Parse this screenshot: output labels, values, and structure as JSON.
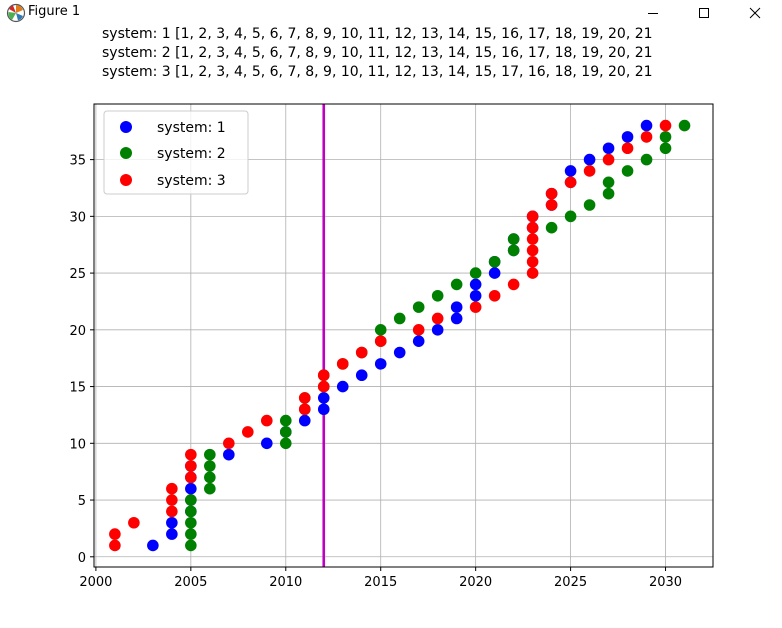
{
  "window": {
    "title": "Figure 1",
    "icon": "matplotlib-icon",
    "controls": [
      "minimize-icon",
      "maximize-icon",
      "close-icon"
    ]
  },
  "chart_data": {
    "type": "scatter",
    "title_lines": [
      "system: 1 [1, 2, 3, 4, 5, 6, 7, 8, 9, 10, 11, 12, 13, 14, 15, 16, 17, 18, 19, 20, 21",
      "system: 2 [1, 2, 3, 4, 5, 6, 7, 8, 9, 10, 11, 12, 13, 14, 15, 16, 17, 18, 19, 20, 21",
      "system: 3 [1, 2, 3, 4, 5, 6, 7, 8, 9, 10, 11, 12, 13, 14, 15, 17, 16, 18, 19, 20, 21"
    ],
    "xlim": [
      1999.9,
      2032.5
    ],
    "ylim": [
      -0.9,
      39.9
    ],
    "xticks": [
      2000,
      2005,
      2010,
      2015,
      2020,
      2025,
      2030
    ],
    "yticks": [
      0,
      5,
      10,
      15,
      20,
      25,
      30,
      35
    ],
    "grid": true,
    "legend_position": "top-left",
    "vline": {
      "x": 2012,
      "color": "#bf00bf"
    },
    "series": [
      {
        "name": "system: 1",
        "color": "#0000ff",
        "x": [
          2003,
          2004,
          2004,
          2005,
          2005,
          2005,
          2005,
          2005,
          2007,
          2009,
          2010,
          2011,
          2012,
          2012,
          2013,
          2014,
          2015,
          2016,
          2017,
          2018,
          2019,
          2019,
          2020,
          2020,
          2021,
          2021,
          2022,
          2022,
          2023,
          2023,
          2024,
          2024,
          2025,
          2025,
          2026,
          2027,
          2028,
          2029
        ],
        "y": [
          1,
          2,
          3,
          4,
          5,
          6,
          7,
          8,
          9,
          10,
          11,
          12,
          13,
          14,
          15,
          16,
          17,
          18,
          19,
          20,
          21,
          22,
          23,
          24,
          25,
          26,
          27,
          28,
          29,
          30,
          31,
          32,
          33,
          34,
          35,
          36,
          37,
          38
        ]
      },
      {
        "name": "system: 2",
        "color": "#008000",
        "x": [
          2005,
          2005,
          2005,
          2005,
          2005,
          2006,
          2006,
          2006,
          2006,
          2010,
          2010,
          2010,
          2011,
          2011,
          2012,
          2012,
          2013,
          2014,
          2015,
          2015,
          2016,
          2017,
          2018,
          2019,
          2020,
          2021,
          2022,
          2022,
          2024,
          2025,
          2026,
          2027,
          2027,
          2028,
          2029,
          2030,
          2030,
          2031
        ],
        "y": [
          1,
          2,
          3,
          4,
          5,
          6,
          7,
          8,
          9,
          10,
          11,
          12,
          13,
          14,
          15,
          16,
          17,
          18,
          19,
          20,
          21,
          22,
          23,
          24,
          25,
          26,
          27,
          28,
          29,
          30,
          31,
          32,
          33,
          34,
          35,
          36,
          37,
          38
        ]
      },
      {
        "name": "system: 3",
        "color": "#ff0000",
        "x": [
          2001,
          2001,
          2002,
          2004,
          2004,
          2004,
          2005,
          2005,
          2005,
          2007,
          2008,
          2009,
          2011,
          2011,
          2012,
          2012,
          2013,
          2014,
          2015,
          2017,
          2018,
          2020,
          2021,
          2022,
          2023,
          2023,
          2023,
          2023,
          2023,
          2023,
          2024,
          2024,
          2025,
          2026,
          2027,
          2028,
          2029,
          2030
        ],
        "y": [
          1,
          2,
          3,
          4,
          5,
          6,
          7,
          8,
          9,
          10,
          11,
          12,
          13,
          14,
          15,
          16,
          17,
          18,
          19,
          20,
          21,
          22,
          23,
          24,
          25,
          26,
          27,
          28,
          29,
          30,
          31,
          32,
          33,
          34,
          35,
          36,
          37,
          38
        ]
      }
    ]
  }
}
